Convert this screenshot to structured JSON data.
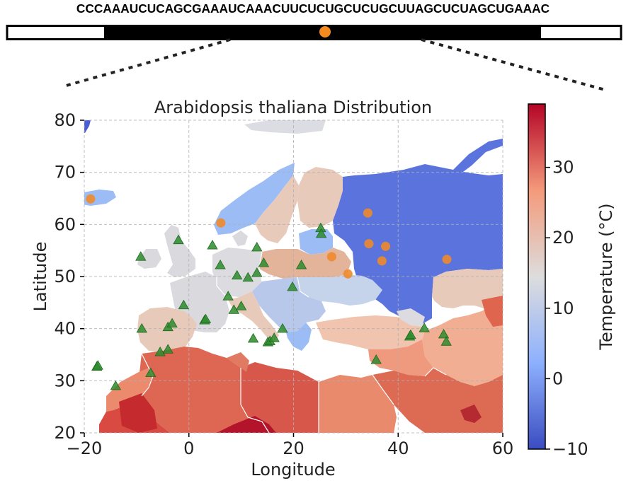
{
  "sequence": "CCCAAAUCUCAGCGAAAUCAAACUUCUCUGCUCUGCUUAGCUCUAGCUGAAAC",
  "chart_data": {
    "type": "scatter",
    "title": "Arabidopsis thaliana Distribution",
    "xlabel": "Longitude",
    "ylabel": "Latitude",
    "xlim": [
      -20,
      60
    ],
    "ylim": [
      20,
      80
    ],
    "xticks": [
      "−20",
      "0",
      "20",
      "40",
      "60"
    ],
    "yticks": [
      "20",
      "30",
      "40",
      "50",
      "60",
      "70",
      "80"
    ],
    "grid": true,
    "colorbar": {
      "label": "Temperature (°C)",
      "range": [
        -10,
        39
      ],
      "ticks": [
        "−10",
        "0",
        "10",
        "20",
        "30"
      ],
      "colormap": "coolwarm"
    },
    "series": [
      {
        "marker": "triangle",
        "color": "#2e8b2e",
        "x": [
          -17.6,
          -17.4,
          -14,
          -9,
          -9.2,
          -7.3,
          -5.5,
          -4,
          -4,
          -3.2,
          -2,
          -1,
          3,
          3.2,
          4.5,
          6,
          7.5,
          8.6,
          9.2,
          10,
          11.3,
          12.3,
          13,
          13,
          14.3,
          15.1,
          15.5,
          16.3,
          17.9,
          19.8,
          21.5,
          25.2,
          25.3,
          35.8,
          42.2,
          42.4,
          45,
          48.7,
          49.2
        ],
        "y": [
          32.7,
          32.9,
          29,
          40,
          53.8,
          31.5,
          35.5,
          36,
          40.3,
          41,
          57,
          44.5,
          41.6,
          41.8,
          56,
          52.2,
          46.2,
          43.6,
          50.2,
          44.3,
          49.8,
          38.1,
          50.7,
          55.6,
          52.6,
          37.4,
          37.6,
          38.2,
          40,
          48,
          52.2,
          59.3,
          58.2,
          34,
          38.5,
          38.8,
          40.1,
          38.9,
          37.5
        ]
      },
      {
        "marker": "circle",
        "color": "#ee8a2b",
        "x": [
          -18.8,
          6.1,
          27.3,
          30.4,
          34.2,
          34.4,
          36.9,
          37.6,
          49.3
        ],
        "y": [
          64.9,
          60.3,
          53.8,
          50.5,
          62.2,
          56.3,
          53,
          55.8,
          53.3
        ]
      }
    ]
  },
  "colors": {
    "triangle": "#2e8b2e",
    "circle": "#ee8a2b",
    "seq_bar": "#000000",
    "seq_highlight": "#f58a1f"
  }
}
